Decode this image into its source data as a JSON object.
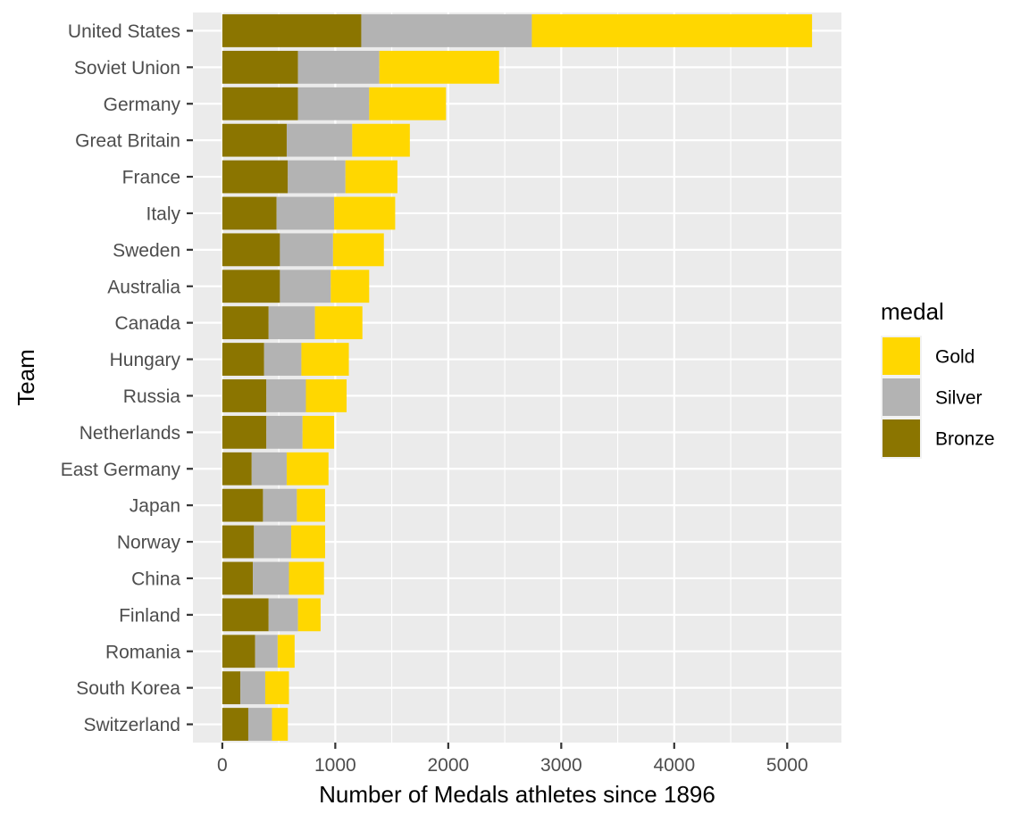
{
  "chart_data": {
    "type": "bar",
    "orientation": "horizontal",
    "stacked": true,
    "title": "",
    "xlabel": "Number of Medals athletes since 1896",
    "ylabel": "Team",
    "xlim": [
      -260,
      5480
    ],
    "x_ticks": [
      0,
      1000,
      2000,
      3000,
      4000,
      5000
    ],
    "x_tick_labels": [
      "0",
      "1000",
      "2000",
      "3000",
      "4000",
      "5000"
    ],
    "grid": true,
    "categories": [
      "United States",
      "Soviet Union",
      "Germany",
      "Great Britain",
      "France",
      "Italy",
      "Sweden",
      "Australia",
      "Canada",
      "Hungary",
      "Russia",
      "Netherlands",
      "East Germany",
      "Japan",
      "Norway",
      "China",
      "Finland",
      "Romania",
      "South Korea",
      "Switzerland"
    ],
    "series": [
      {
        "name": "Bronze",
        "color": "#8b7500",
        "values": [
          1230,
          670,
          670,
          570,
          580,
          480,
          510,
          510,
          410,
          370,
          390,
          390,
          260,
          360,
          280,
          270,
          410,
          290,
          160,
          230
        ]
      },
      {
        "name": "Silver",
        "color": "#b3b3b3",
        "values": [
          1510,
          720,
          630,
          580,
          510,
          510,
          470,
          450,
          410,
          330,
          350,
          320,
          310,
          300,
          330,
          320,
          260,
          200,
          220,
          210
        ]
      },
      {
        "name": "Gold",
        "color": "#ffd700",
        "values": [
          2480,
          1060,
          680,
          510,
          460,
          540,
          450,
          340,
          420,
          420,
          360,
          280,
          370,
          250,
          300,
          310,
          200,
          150,
          210,
          140
        ]
      }
    ],
    "legend": {
      "title": "medal",
      "position": "right",
      "entries": [
        {
          "label": "Gold",
          "color": "#ffd700"
        },
        {
          "label": "Silver",
          "color": "#b3b3b3"
        },
        {
          "label": "Bronze",
          "color": "#8b7500"
        }
      ]
    },
    "colors": {
      "panel": "#ebebeb",
      "grid": "#ffffff",
      "tick_text": "#4d4d4d",
      "tick_mark": "#333333"
    }
  }
}
